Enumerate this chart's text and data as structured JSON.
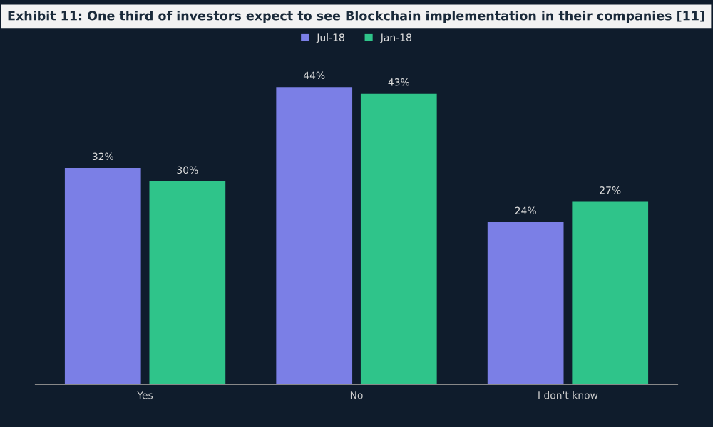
{
  "chart_data": {
    "type": "bar",
    "title": "Exhibit 11: One third of investors expect to see Blockchain implementation in their companies [11]",
    "categories": [
      "Yes",
      "No",
      "I don't know"
    ],
    "series": [
      {
        "name": "Jul-18",
        "color": "#7b7fe6",
        "values": [
          32,
          44,
          24
        ],
        "value_labels": [
          "32%",
          "44%",
          "24%"
        ]
      },
      {
        "name": "Jan-18",
        "color": "#2fc48a",
        "values": [
          30,
          43,
          27
        ],
        "value_labels": [
          "30%",
          "43%",
          "27%"
        ]
      }
    ],
    "legend": "top",
    "grid": false
  }
}
